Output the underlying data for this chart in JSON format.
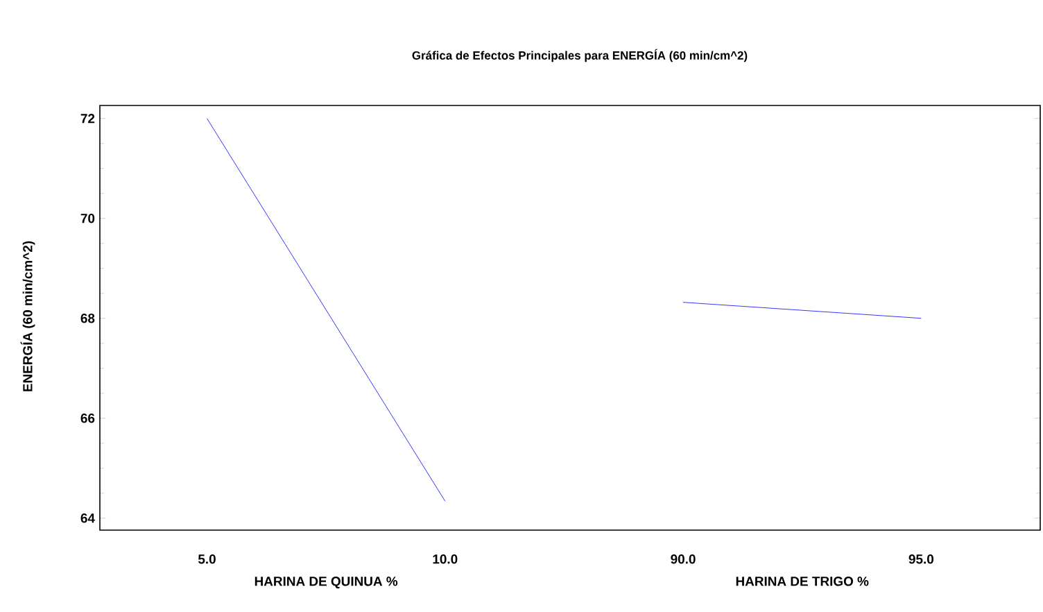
{
  "chart_data": {
    "type": "line",
    "title": "Gráfica de Efectos Principales para ENERGÍA (60 min/cm^2)",
    "ylabel": "ENERGÍA (60 min/cm^2)",
    "categories": [
      "5.0",
      "10.0",
      "90.0",
      "95.0"
    ],
    "series": [
      {
        "color": "#0000ff",
        "values": [
          72,
          64.34,
          null,
          null
        ]
      },
      {
        "color": "#0000ff",
        "values": [
          null,
          null,
          68.32,
          68.0
        ]
      }
    ],
    "ylim": [
      63.76,
      72.26
    ],
    "yticks": [
      64,
      66,
      68,
      70,
      72
    ],
    "annotations": [
      "HARINA DE QUINUA %",
      "HARINA DE TRIGO %"
    ],
    "grid": false,
    "marker": "none",
    "line_style": "solid"
  }
}
